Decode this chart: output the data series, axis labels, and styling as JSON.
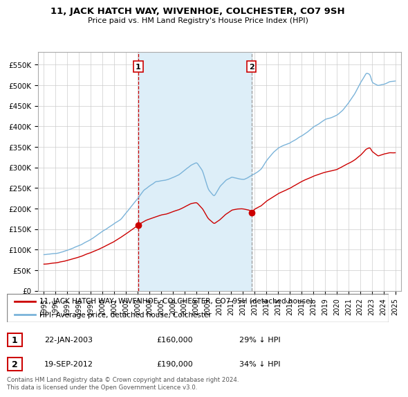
{
  "title": "11, JACK HATCH WAY, WIVENHOE, COLCHESTER, CO7 9SH",
  "subtitle": "Price paid vs. HM Land Registry's House Price Index (HPI)",
  "hpi_color": "#7ab3d9",
  "hpi_fill_color": "#ddeef8",
  "price_color": "#cc0000",
  "vline1_color": "#cc0000",
  "vline2_color": "#999999",
  "purchase1": {
    "date_x": 2003.06,
    "price": 160000,
    "label": "1"
  },
  "purchase2": {
    "date_x": 2012.72,
    "price": 190000,
    "label": "2"
  },
  "legend_entries": [
    "11, JACK HATCH WAY, WIVENHOE, COLCHESTER, CO7 9SH (detached house)",
    "HPI: Average price, detached house, Colchester"
  ],
  "footer": "Contains HM Land Registry data © Crown copyright and database right 2024.\nThis data is licensed under the Open Government Licence v3.0.",
  "table_rows": [
    {
      "num": "1",
      "date": "22-JAN-2003",
      "price": "£160,000",
      "hpi": "29% ↓ HPI"
    },
    {
      "num": "2",
      "date": "19-SEP-2012",
      "price": "£190,000",
      "hpi": "34% ↓ HPI"
    }
  ],
  "yticks": [
    0,
    50000,
    100000,
    150000,
    200000,
    250000,
    300000,
    350000,
    400000,
    450000,
    500000,
    550000
  ],
  "ylim": [
    0,
    580000
  ],
  "xlim": [
    1994.5,
    2025.5
  ]
}
